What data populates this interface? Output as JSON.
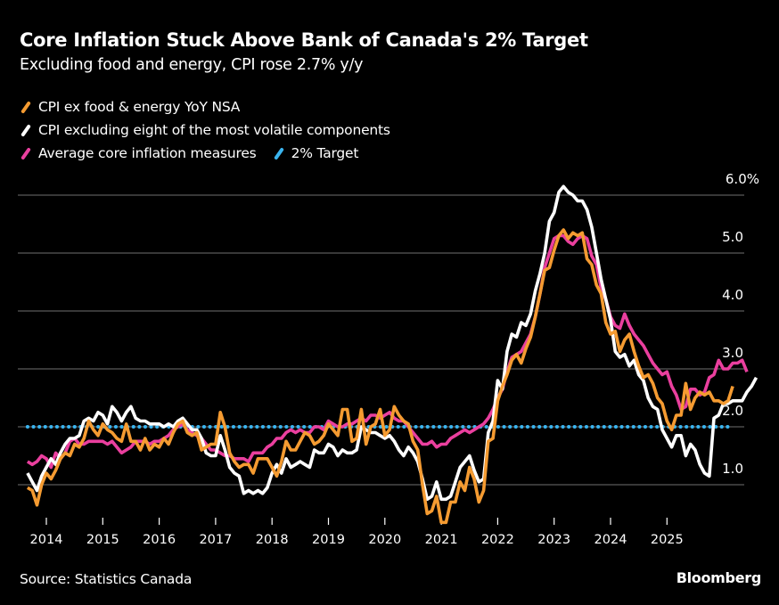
{
  "header": {
    "title": "Core Inflation Stuck Above Bank of Canada's 2% Target",
    "subtitle": "Excluding food and energy, CPI rose 2.7% y/y"
  },
  "footer": {
    "source": "Source: Statistics Canada",
    "brand": "Bloomberg"
  },
  "colors": {
    "background": "#000000",
    "gridline": "#5a5a5a",
    "orange": "#f59b31",
    "white": "#ffffff",
    "pink": "#ea3f9e",
    "blue": "#3ab4ef"
  },
  "chart_data": {
    "type": "line",
    "title": "Core Inflation Stuck Above Bank of Canada's 2% Target",
    "subtitle": "Excluding food and energy, CPI rose 2.7% y/y",
    "xlabel": "",
    "ylabel": "",
    "ylim": [
      0.5,
      6.0
    ],
    "y_ticks": [
      1.0,
      2.0,
      3.0,
      4.0,
      5.0,
      6.0
    ],
    "y_tick_labels": [
      "1.0",
      "2.0",
      "3.0",
      "4.0",
      "5.0",
      "6.0%"
    ],
    "x_ticks": [
      "2014",
      "2015",
      "2016",
      "2017",
      "2018",
      "2019",
      "2020",
      "2021",
      "2022",
      "2023",
      "2024",
      "2025"
    ],
    "grid": true,
    "legend_position": "top-left",
    "x_start": "2013-09",
    "x_end": "2025-09",
    "frequency": "monthly",
    "series": [
      {
        "name": "CPI ex food & energy YoY NSA",
        "color": "#f59b31",
        "values": [
          0.95,
          0.9,
          0.65,
          1.0,
          1.2,
          1.1,
          1.25,
          1.45,
          1.55,
          1.5,
          1.7,
          1.65,
          1.8,
          2.1,
          1.95,
          1.85,
          2.05,
          1.95,
          1.9,
          1.8,
          1.75,
          2.05,
          1.75,
          1.75,
          1.6,
          1.8,
          1.6,
          1.7,
          1.65,
          1.8,
          1.7,
          1.9,
          2.05,
          2.1,
          1.9,
          1.85,
          1.9,
          1.6,
          1.65,
          1.7,
          1.7,
          2.25,
          2.0,
          1.55,
          1.4,
          1.3,
          1.35,
          1.35,
          1.2,
          1.45,
          1.45,
          1.45,
          1.3,
          1.15,
          1.4,
          1.75,
          1.6,
          1.6,
          1.75,
          1.9,
          1.85,
          1.7,
          1.75,
          1.85,
          2.05,
          1.95,
          1.85,
          2.3,
          2.3,
          1.75,
          1.8,
          2.3,
          1.7,
          2.0,
          2.05,
          2.3,
          1.85,
          1.95,
          2.35,
          2.2,
          2.1,
          2.05,
          1.75,
          1.6,
          1.0,
          0.5,
          0.55,
          0.8,
          0.35,
          0.35,
          0.7,
          0.7,
          1.05,
          0.9,
          1.3,
          1.1,
          0.7,
          0.9,
          1.75,
          1.8,
          2.45,
          2.7,
          2.9,
          3.15,
          3.25,
          3.1,
          3.35,
          3.55,
          3.9,
          4.3,
          4.7,
          4.75,
          5.05,
          5.3,
          5.4,
          5.25,
          5.35,
          5.3,
          5.35,
          4.9,
          4.8,
          4.45,
          4.3,
          3.8,
          3.6,
          3.65,
          3.3,
          3.5,
          3.6,
          3.3,
          3.05,
          2.85,
          2.9,
          2.75,
          2.5,
          2.4,
          2.1,
          1.95,
          2.2,
          2.2,
          2.75,
          2.3,
          2.5,
          2.6,
          2.55,
          2.6,
          2.45,
          2.45,
          2.4,
          2.45,
          2.7
        ]
      },
      {
        "name": "CPI excluding eight of the most volatile components",
        "color": "#ffffff",
        "values": [
          1.2,
          1.05,
          0.9,
          1.15,
          1.3,
          1.45,
          1.35,
          1.55,
          1.7,
          1.8,
          1.8,
          1.85,
          2.1,
          2.15,
          2.1,
          2.25,
          2.2,
          2.05,
          2.35,
          2.25,
          2.1,
          2.25,
          2.35,
          2.15,
          2.1,
          2.1,
          2.05,
          2.05,
          2.05,
          2.0,
          2.05,
          2.0,
          2.1,
          2.15,
          2.05,
          1.95,
          1.95,
          1.8,
          1.55,
          1.5,
          1.5,
          1.85,
          1.6,
          1.3,
          1.2,
          1.15,
          0.85,
          0.9,
          0.85,
          0.9,
          0.85,
          0.95,
          1.2,
          1.35,
          1.2,
          1.45,
          1.3,
          1.35,
          1.4,
          1.35,
          1.3,
          1.6,
          1.55,
          1.55,
          1.7,
          1.65,
          1.5,
          1.6,
          1.55,
          1.55,
          1.6,
          2.0,
          1.95,
          1.9,
          1.9,
          1.85,
          1.8,
          1.85,
          1.75,
          1.6,
          1.5,
          1.65,
          1.55,
          1.4,
          1.1,
          0.75,
          0.8,
          1.05,
          0.75,
          0.75,
          0.8,
          1.05,
          1.3,
          1.4,
          1.5,
          1.25,
          1.05,
          1.1,
          1.9,
          2.1,
          2.8,
          2.65,
          3.3,
          3.6,
          3.55,
          3.8,
          3.75,
          3.95,
          4.35,
          4.65,
          5.0,
          5.55,
          5.7,
          6.05,
          6.15,
          6.05,
          6.0,
          5.9,
          5.9,
          5.75,
          5.45,
          5.0,
          4.55,
          4.2,
          3.85,
          3.3,
          3.2,
          3.25,
          3.05,
          3.15,
          2.9,
          2.8,
          2.5,
          2.35,
          2.3,
          1.95,
          1.8,
          1.65,
          1.85,
          1.85,
          1.5,
          1.7,
          1.6,
          1.35,
          1.2,
          1.15,
          2.15,
          2.2,
          2.4,
          2.4,
          2.45,
          2.45,
          2.45,
          2.6,
          2.7,
          2.85
        ]
      },
      {
        "name": "Average core inflation measures",
        "color": "#ea3f9e",
        "values": [
          1.4,
          1.35,
          1.4,
          1.5,
          1.45,
          1.3,
          1.55,
          1.45,
          1.55,
          1.75,
          1.8,
          1.7,
          1.7,
          1.75,
          1.75,
          1.75,
          1.75,
          1.7,
          1.75,
          1.65,
          1.55,
          1.6,
          1.65,
          1.75,
          1.75,
          1.75,
          1.7,
          1.75,
          1.75,
          1.8,
          1.85,
          1.95,
          2.0,
          2.05,
          1.95,
          1.9,
          1.85,
          1.8,
          1.7,
          1.6,
          1.6,
          1.55,
          1.5,
          1.5,
          1.45,
          1.45,
          1.45,
          1.4,
          1.55,
          1.55,
          1.55,
          1.65,
          1.7,
          1.8,
          1.8,
          1.9,
          1.95,
          1.9,
          1.95,
          1.9,
          1.9,
          2.0,
          2.0,
          1.95,
          2.1,
          2.05,
          2.0,
          2.0,
          2.05,
          2.05,
          2.1,
          2.15,
          2.1,
          2.2,
          2.2,
          2.15,
          2.2,
          2.25,
          2.15,
          2.1,
          2.1,
          2.0,
          1.9,
          1.8,
          1.7,
          1.7,
          1.75,
          1.65,
          1.7,
          1.7,
          1.8,
          1.85,
          1.9,
          1.95,
          1.9,
          1.95,
          2.0,
          2.05,
          2.15,
          2.3,
          2.5,
          2.65,
          2.95,
          3.2,
          3.25,
          3.3,
          3.45,
          3.6,
          3.9,
          4.3,
          4.75,
          5.0,
          5.25,
          5.3,
          5.3,
          5.2,
          5.15,
          5.25,
          5.3,
          5.25,
          4.95,
          4.8,
          4.4,
          4.2,
          3.9,
          3.75,
          3.7,
          3.95,
          3.75,
          3.6,
          3.5,
          3.4,
          3.25,
          3.1,
          3.0,
          2.9,
          2.95,
          2.7,
          2.55,
          2.3,
          2.35,
          2.65,
          2.65,
          2.55,
          2.6,
          2.85,
          2.9,
          3.15,
          3.0,
          3.0,
          3.1,
          3.1,
          3.15,
          2.95
        ]
      },
      {
        "name": "2% Target",
        "color": "#3ab4ef",
        "constant": 2.0
      }
    ]
  }
}
